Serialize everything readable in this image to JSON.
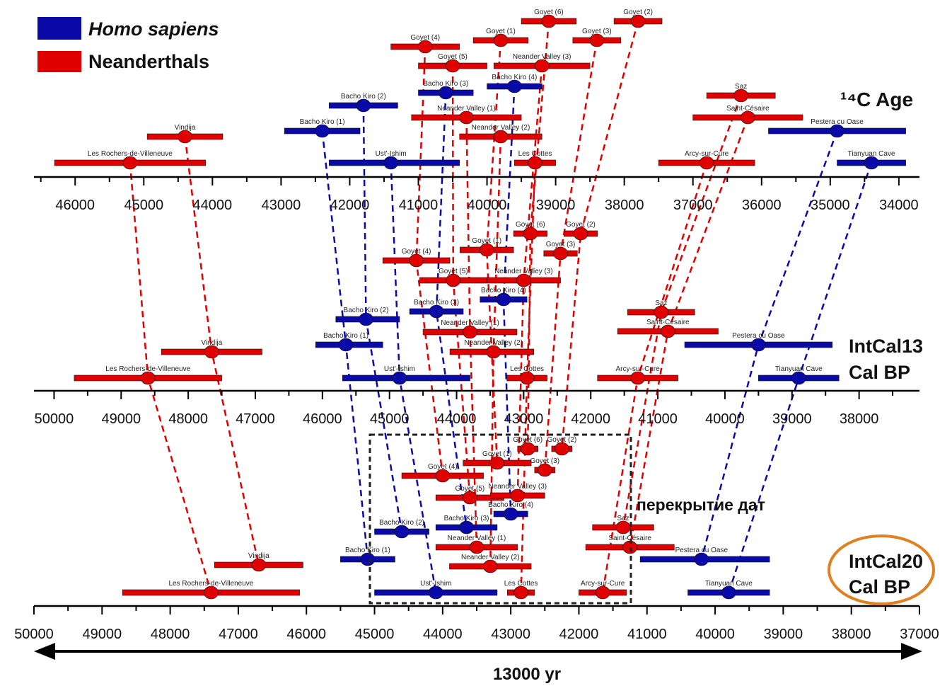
{
  "legend": [
    {
      "label": "Homo sapiens",
      "color": "#0a0aa8",
      "italic": true
    },
    {
      "label": "Neanderthals",
      "color": "#e00000",
      "italic": false
    }
  ],
  "colors": {
    "sapiens": "#0a0aa8",
    "neanderthal": "#e00000",
    "circle_outline": "#e08020"
  },
  "panel_labels": {
    "c14": "¹⁴C Age",
    "intcal13_line1": "IntCal13",
    "intcal13_line2": "Cal BP",
    "intcal20_line1": "IntCal20",
    "intcal20_line2": "Cal BP",
    "overlap": "перекрытие дат",
    "span": "13000 yr"
  },
  "chart_data": {
    "type": "scatter",
    "axes": [
      {
        "id": "c14",
        "min": 33700,
        "max": 46600,
        "reversed": true,
        "ticks": [
          46000,
          45000,
          44000,
          43000,
          42000,
          41000,
          40000,
          39000,
          38000,
          37000,
          36000,
          35000,
          34000
        ]
      },
      {
        "id": "intcal13",
        "min": 37100,
        "max": 50300,
        "reversed": true,
        "ticks": [
          50000,
          49000,
          48000,
          47000,
          46000,
          45000,
          44000,
          43000,
          42000,
          41000,
          40000,
          39000,
          38000
        ]
      },
      {
        "id": "intcal20",
        "min": 37000,
        "max": 50000,
        "reversed": true,
        "ticks": [
          50000,
          49000,
          48000,
          47000,
          46000,
          45000,
          44000,
          43000,
          42000,
          41000,
          40000,
          39000,
          38000,
          37000
        ]
      }
    ],
    "sites": [
      {
        "name": "Goyet (6)",
        "group": "neanderthal",
        "c14": [
          39100,
          39500,
          38700
        ],
        "intcal13": [
          42900,
          43150,
          42650
        ],
        "intcal20": [
          42750,
          42900,
          42600
        ]
      },
      {
        "name": "Goyet (2)",
        "group": "neanderthal",
        "c14": [
          37800,
          38150,
          37450
        ],
        "intcal13": [
          42150,
          42400,
          41900
        ],
        "intcal20": [
          42250,
          42400,
          42100
        ]
      },
      {
        "name": "Goyet (4)",
        "group": "neanderthal",
        "c14": [
          40900,
          41400,
          40400
        ],
        "intcal13": [
          44600,
          45100,
          44100
        ],
        "intcal20": [
          44000,
          44600,
          43400
        ]
      },
      {
        "name": "Goyet (1)",
        "group": "neanderthal",
        "c14": [
          39800,
          40200,
          39400
        ],
        "intcal13": [
          43550,
          43950,
          43150
        ],
        "intcal20": [
          43200,
          43700,
          42700
        ]
      },
      {
        "name": "Goyet (3)",
        "group": "neanderthal",
        "c14": [
          38400,
          38750,
          38050
        ],
        "intcal13": [
          42450,
          42700,
          42200
        ],
        "intcal20": [
          42500,
          42650,
          42350
        ]
      },
      {
        "name": "Goyet (5)",
        "group": "neanderthal",
        "c14": [
          40500,
          41000,
          40000
        ],
        "intcal13": [
          44050,
          44550,
          43550
        ],
        "intcal20": [
          43600,
          44100,
          43100
        ]
      },
      {
        "name": "Neander Valley (3)",
        "group": "neanderthal",
        "c14": [
          39200,
          39900,
          38500
        ],
        "intcal13": [
          43000,
          43550,
          42450
        ],
        "intcal20": [
          42900,
          43300,
          42500
        ]
      },
      {
        "name": "Bacho Kiro (4)",
        "group": "sapiens",
        "c14": [
          39600,
          40000,
          39200
        ],
        "intcal13": [
          43300,
          43650,
          42950
        ],
        "intcal20": [
          43000,
          43250,
          42750
        ]
      },
      {
        "name": "Bacho Kiro (2)",
        "group": "sapiens",
        "c14": [
          41800,
          42300,
          41300
        ],
        "intcal13": [
          45350,
          45800,
          44850
        ],
        "intcal20": [
          44600,
          45000,
          44200
        ]
      },
      {
        "name": "Bacho Kiro (3)",
        "group": "sapiens",
        "c14": [
          40600,
          41000,
          40200
        ],
        "intcal13": [
          44300,
          44700,
          43900
        ],
        "intcal20": [
          43650,
          44100,
          43200
        ]
      },
      {
        "name": "Neander Valley (1)",
        "group": "neanderthal",
        "c14": [
          40300,
          41100,
          39500
        ],
        "intcal13": [
          43800,
          44500,
          43100
        ],
        "intcal20": [
          43500,
          44100,
          42900
        ]
      },
      {
        "name": "Bacho Kiro (1)",
        "group": "sapiens",
        "c14": [
          42400,
          42950,
          41850
        ],
        "intcal13": [
          45650,
          46100,
          45100
        ],
        "intcal20": [
          45100,
          45500,
          44700
        ]
      },
      {
        "name": "Neander Valley (2)",
        "group": "neanderthal",
        "c14": [
          39800,
          40400,
          39200
        ],
        "intcal13": [
          43450,
          44100,
          42850
        ],
        "intcal20": [
          43300,
          43900,
          42700
        ]
      },
      {
        "name": "Vindija",
        "group": "neanderthal",
        "c14": [
          44400,
          44950,
          43850
        ],
        "intcal13": [
          47650,
          48400,
          46900
        ],
        "intcal20": [
          46700,
          47350,
          46050
        ]
      },
      {
        "name": "Les Rochers-de-Villeneuve",
        "group": "neanderthal",
        "c14": [
          45200,
          46300,
          44100
        ],
        "intcal13": [
          48600,
          49700,
          47500
        ],
        "intcal20": [
          47400,
          48700,
          46100
        ]
      },
      {
        "name": "Ust'-Ishim",
        "group": "sapiens",
        "c14": [
          41400,
          42300,
          40400
        ],
        "intcal13": [
          44850,
          45700,
          43800
        ],
        "intcal20": [
          44100,
          45000,
          43200
        ]
      },
      {
        "name": "Les Cottes",
        "group": "neanderthal",
        "c14": [
          39300,
          39600,
          39000
        ],
        "intcal13": [
          42950,
          43250,
          42650
        ],
        "intcal20": [
          42850,
          43050,
          42650
        ]
      },
      {
        "name": "Arcy-sur-Cure",
        "group": "neanderthal",
        "c14": [
          36800,
          37500,
          36100
        ],
        "intcal13": [
          41300,
          41900,
          40700
        ],
        "intcal20": [
          41650,
          42000,
          41300
        ]
      },
      {
        "name": "Saz",
        "group": "neanderthal",
        "c14": [
          36300,
          36800,
          35800
        ],
        "intcal13": [
          40950,
          41450,
          40450
        ],
        "intcal20": [
          41350,
          41800,
          40900
        ]
      },
      {
        "name": "Saint-Césaire",
        "group": "neanderthal",
        "c14": [
          36200,
          37000,
          35400
        ],
        "intcal13": [
          40850,
          41600,
          40100
        ],
        "intcal20": [
          41250,
          41900,
          40600
        ]
      },
      {
        "name": "Pestera cu Oase",
        "group": "sapiens",
        "c14": [
          34900,
          35900,
          33900
        ],
        "intcal13": [
          39500,
          40600,
          38400
        ],
        "intcal20": [
          40200,
          41100,
          39200
        ]
      },
      {
        "name": "Tianyuan Cave",
        "group": "sapiens",
        "c14": [
          34400,
          34900,
          33900
        ],
        "intcal13": [
          38900,
          39500,
          38300
        ],
        "intcal20": [
          39800,
          40400,
          39200
        ]
      }
    ]
  }
}
